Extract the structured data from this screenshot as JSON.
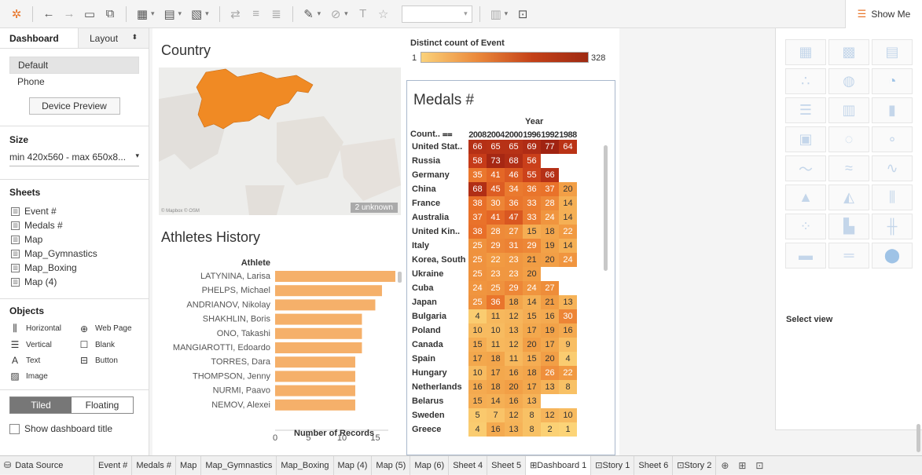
{
  "toolbar": {
    "dropdown_value": ""
  },
  "showme": {
    "label": "Show Me"
  },
  "left": {
    "tab_dashboard": "Dashboard",
    "tab_layout": "Layout",
    "device_default": "Default",
    "device_phone": "Phone",
    "device_preview": "Device Preview",
    "size_title": "Size",
    "size_value": "min 420x560 - max 650x8...",
    "sheets_title": "Sheets",
    "sheets": [
      "Event #",
      "Medals #",
      "Map",
      "Map_Gymnastics",
      "Map_Boxing",
      "Map (4)"
    ],
    "objects_title": "Objects",
    "objects": [
      {
        "label": "Horizontal",
        "icon": "horizontal-icon"
      },
      {
        "label": "Web Page",
        "icon": "globe-icon"
      },
      {
        "label": "Vertical",
        "icon": "vertical-icon"
      },
      {
        "label": "Blank",
        "icon": "blank-icon"
      },
      {
        "label": "Text",
        "icon": "text-icon"
      },
      {
        "label": "Button",
        "icon": "button-icon"
      },
      {
        "label": "Image",
        "icon": "image-icon"
      }
    ],
    "tiled": "Tiled",
    "floating": "Floating",
    "show_title": "Show dashboard title"
  },
  "map": {
    "title": "Country",
    "credit": "© Mapbox © OSM",
    "unknown": "2 unknown"
  },
  "legend": {
    "title": "Distinct count of Event",
    "min": "1",
    "max": "328"
  },
  "athletes": {
    "title": "Athletes History",
    "header": "Athlete",
    "xlabel": "Number of Records",
    "ticks": [
      "0",
      "5",
      "10",
      "15"
    ],
    "names": [
      "LATYNINA, Larisa",
      "PHELPS, Michael",
      "ANDRIANOV, Nikolay",
      "SHAKHLIN, Boris",
      "ONO, Takashi",
      "MANGIAROTTI, Edoardo",
      "TORRES, Dara",
      "THOMPSON, Jenny",
      "NURMI, Paavo",
      "NEMOV, Alexei"
    ],
    "values": [
      18,
      16,
      15,
      13,
      13,
      13,
      12,
      12,
      12,
      12
    ]
  },
  "medals": {
    "title": "Medals #",
    "year_label": "Year",
    "count_label": "Count..",
    "years": [
      "2008",
      "2004",
      "2000",
      "1996",
      "1992",
      "1988"
    ],
    "rows": [
      {
        "name": "United Stat..",
        "vals": [
          "66",
          "65",
          "65",
          "69",
          "77",
          "64"
        ]
      },
      {
        "name": "Russia",
        "vals": [
          "58",
          "73",
          "68",
          "56",
          "",
          ""
        ]
      },
      {
        "name": "Germany",
        "vals": [
          "35",
          "41",
          "46",
          "55",
          "66",
          ""
        ]
      },
      {
        "name": "China",
        "vals": [
          "68",
          "45",
          "34",
          "36",
          "37",
          "20"
        ]
      },
      {
        "name": "France",
        "vals": [
          "38",
          "30",
          "36",
          "33",
          "28",
          "14"
        ]
      },
      {
        "name": "Australia",
        "vals": [
          "37",
          "41",
          "47",
          "33",
          "24",
          "14"
        ]
      },
      {
        "name": "United Kin..",
        "vals": [
          "38",
          "28",
          "27",
          "15",
          "18",
          "22"
        ]
      },
      {
        "name": "Italy",
        "vals": [
          "25",
          "29",
          "31",
          "29",
          "19",
          "14"
        ]
      },
      {
        "name": "Korea, South",
        "vals": [
          "25",
          "22",
          "23",
          "21",
          "20",
          "24"
        ]
      },
      {
        "name": "Ukraine",
        "vals": [
          "25",
          "23",
          "23",
          "20",
          "",
          ""
        ]
      },
      {
        "name": "Cuba",
        "vals": [
          "24",
          "25",
          "29",
          "24",
          "27",
          ""
        ]
      },
      {
        "name": "Japan",
        "vals": [
          "25",
          "36",
          "18",
          "14",
          "21",
          "13"
        ]
      },
      {
        "name": "Bulgaria",
        "vals": [
          "4",
          "11",
          "12",
          "15",
          "16",
          "30"
        ]
      },
      {
        "name": "Poland",
        "vals": [
          "10",
          "10",
          "13",
          "17",
          "19",
          "16"
        ]
      },
      {
        "name": "Canada",
        "vals": [
          "15",
          "11",
          "12",
          "20",
          "17",
          "9"
        ]
      },
      {
        "name": "Spain",
        "vals": [
          "17",
          "18",
          "11",
          "15",
          "20",
          "4"
        ]
      },
      {
        "name": "Hungary",
        "vals": [
          "10",
          "17",
          "16",
          "18",
          "26",
          "22"
        ]
      },
      {
        "name": "Netherlands",
        "vals": [
          "16",
          "18",
          "20",
          "17",
          "13",
          "8"
        ]
      },
      {
        "name": "Belarus",
        "vals": [
          "15",
          "14",
          "16",
          "13",
          "",
          ""
        ]
      },
      {
        "name": "Sweden",
        "vals": [
          "5",
          "7",
          "12",
          "8",
          "12",
          "10"
        ]
      },
      {
        "name": "Greece",
        "vals": [
          "4",
          "16",
          "13",
          "8",
          "2",
          "1"
        ]
      }
    ]
  },
  "showme_panel": {
    "select_view": "Select view"
  },
  "bottom": {
    "data_source": "Data Source",
    "tabs": [
      "Event #",
      "Medals #",
      "Map",
      "Map_Gymnastics",
      "Map_Boxing",
      "Map (4)",
      "Map (5)",
      "Map (6)",
      "Sheet 4",
      "Sheet 5",
      "Dashboard 1",
      "Story 1",
      "Sheet 6",
      "Story 2"
    ],
    "selected": "Dashboard 1"
  }
}
